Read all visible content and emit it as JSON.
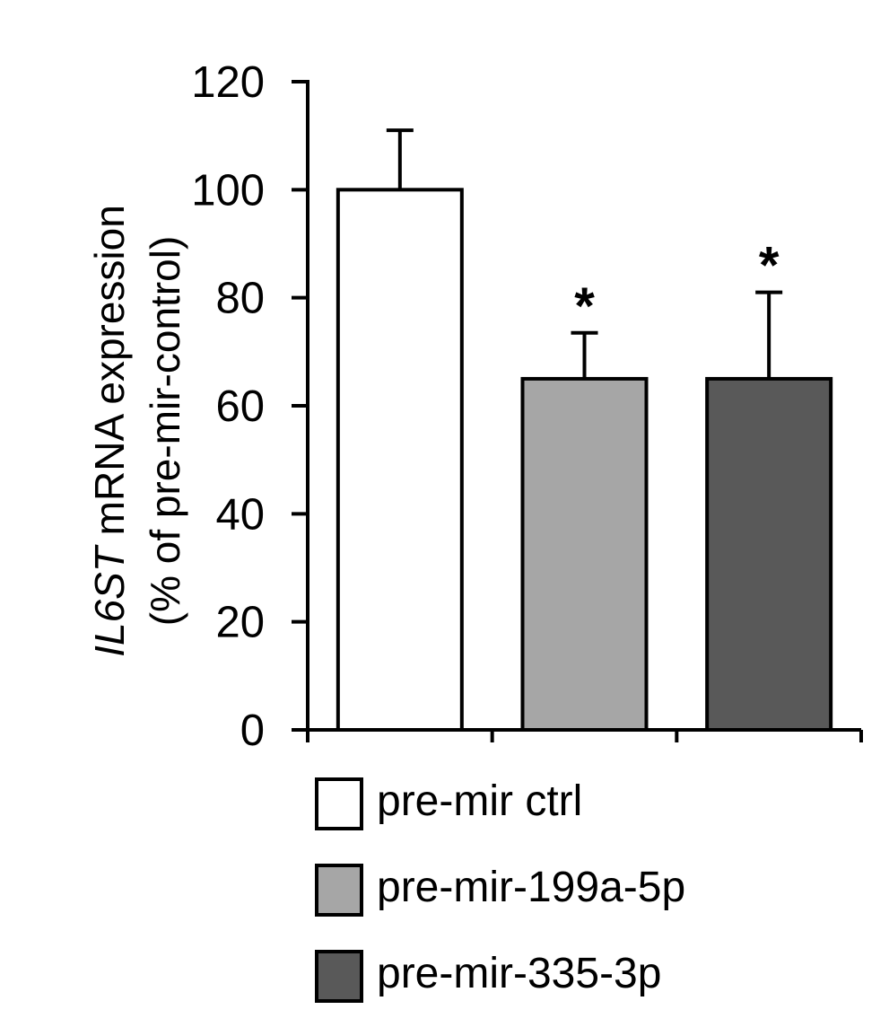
{
  "chart_data": {
    "type": "bar",
    "ylabel_italic": "IL6ST",
    "ylabel_rest": " mRNA expression",
    "ylabel_line2": "(% of pre-mir-control)",
    "ylim": [
      0,
      120
    ],
    "yticks": [
      0,
      20,
      40,
      60,
      80,
      100,
      120
    ],
    "grid": false,
    "legend_position": "bottom",
    "categories": [
      "pre-mir ctrl",
      "pre-mir-199a-5p",
      "pre-mir-335-3p"
    ],
    "values": [
      100,
      65,
      65
    ],
    "error_upper": [
      111,
      73.5,
      81
    ],
    "significance": [
      "",
      "*",
      "*"
    ],
    "colors": [
      "#ffffff",
      "#a6a6a6",
      "#595959"
    ]
  }
}
